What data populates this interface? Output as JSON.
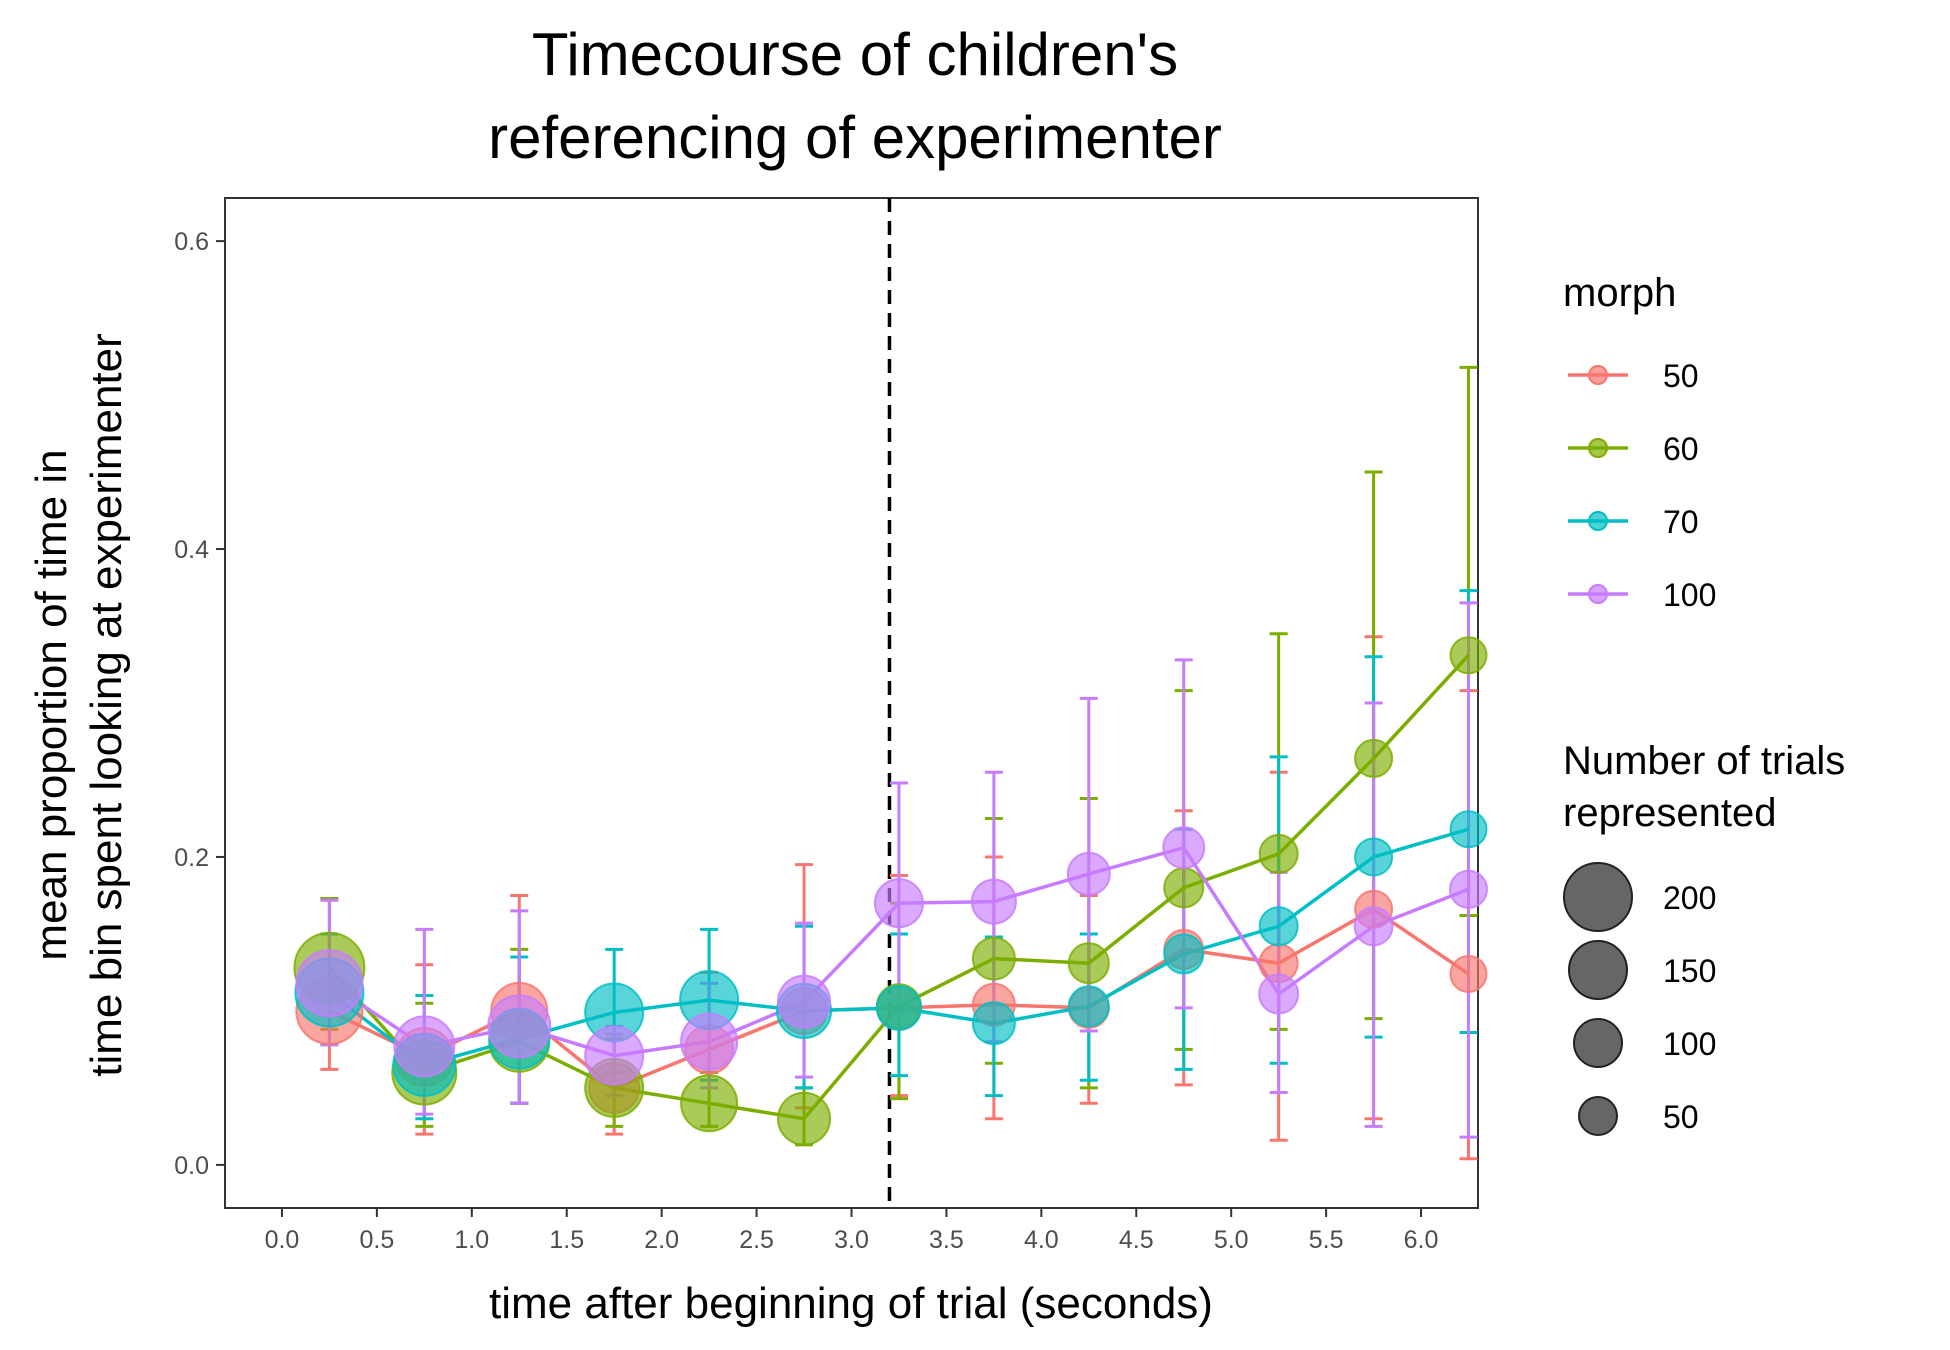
{
  "chart_data": {
    "type": "line",
    "title": [
      "Timecourse of children's",
      "referencing of experimenter"
    ],
    "xlabel": "time after beginning of trial (seconds)",
    "ylabel": [
      "mean proportion of time in",
      "time bin spent looking at experimenter"
    ],
    "xlim": [
      -0.3,
      6.3
    ],
    "ylim": [
      -0.028,
      0.628
    ],
    "x_ticks": [
      "0.0",
      "0.5",
      "1.0",
      "1.5",
      "2.0",
      "2.5",
      "3.0",
      "3.5",
      "4.0",
      "4.5",
      "5.0",
      "5.5",
      "6.0"
    ],
    "y_ticks": [
      "0.0",
      "0.2",
      "0.4",
      "0.6"
    ],
    "grid": false,
    "reference_line": {
      "x": 3.2,
      "style": "dashed"
    },
    "legend_position": "right",
    "color_legend": {
      "title": "morph",
      "entries": [
        "50",
        "60",
        "70",
        "100"
      ]
    },
    "size_legend": {
      "title": [
        "Number of trials",
        "represented"
      ],
      "entries": [
        "200",
        "150",
        "100",
        "50"
      ]
    },
    "colors": {
      "50": "#F8766D",
      "60": "#7CAE00",
      "70": "#00BFC4",
      "100": "#C77CFF",
      "reference_line": "#000000",
      "legend_size_points": "#404040"
    },
    "x": [
      0.25,
      0.75,
      1.25,
      1.75,
      2.25,
      2.75,
      3.25,
      3.75,
      4.25,
      4.75,
      5.25,
      5.75,
      6.25
    ],
    "series": [
      {
        "name": "50",
        "values": [
          0.1,
          0.07,
          0.1,
          0.05,
          0.075,
          0.1,
          0.102,
          0.104,
          0.102,
          0.14,
          0.131,
          0.166,
          0.124
        ],
        "lower": [
          0.062,
          0.02,
          0.04,
          0.02,
          0.025,
          0.037,
          0.045,
          0.03,
          0.04,
          0.052,
          0.016,
          0.03,
          0.004
        ],
        "upper": [
          0.172,
          0.13,
          0.175,
          0.085,
          0.125,
          0.195,
          0.188,
          0.2,
          0.175,
          0.23,
          0.255,
          0.343,
          0.308
        ],
        "n": [
          190,
          150,
          140,
          110,
          100,
          90,
          80,
          70,
          60,
          55,
          50,
          45,
          40
        ]
      },
      {
        "name": "60",
        "values": [
          0.128,
          0.06,
          0.08,
          0.05,
          0.04,
          0.03,
          0.103,
          0.134,
          0.131,
          0.18,
          0.202,
          0.264,
          0.331
        ],
        "lower": [
          0.088,
          0.025,
          0.04,
          0.025,
          0.025,
          0.013,
          0.043,
          0.066,
          0.05,
          0.075,
          0.088,
          0.095,
          0.162
        ],
        "upper": [
          0.173,
          0.105,
          0.14,
          0.082,
          0.06,
          0.05,
          0.17,
          0.225,
          0.238,
          0.308,
          0.345,
          0.45,
          0.518
        ],
        "n": [
          210,
          180,
          160,
          150,
          140,
          120,
          80,
          70,
          60,
          55,
          50,
          45,
          40
        ]
      },
      {
        "name": "70",
        "values": [
          0.112,
          0.065,
          0.082,
          0.099,
          0.107,
          0.1,
          0.102,
          0.092,
          0.103,
          0.137,
          0.155,
          0.2,
          0.218
        ],
        "lower": [
          0.078,
          0.03,
          0.04,
          0.06,
          0.055,
          0.05,
          0.058,
          0.045,
          0.055,
          0.062,
          0.066,
          0.083,
          0.086
        ],
        "upper": [
          0.15,
          0.11,
          0.135,
          0.14,
          0.153,
          0.155,
          0.15,
          0.148,
          0.15,
          0.218,
          0.265,
          0.33,
          0.373
        ],
        "n": [
          200,
          170,
          160,
          150,
          150,
          130,
          80,
          70,
          60,
          55,
          50,
          45,
          40
        ]
      },
      {
        "name": "100",
        "values": [
          0.118,
          0.077,
          0.09,
          0.071,
          0.08,
          0.106,
          0.17,
          0.171,
          0.189,
          0.206,
          0.111,
          0.155,
          0.179
        ],
        "lower": [
          0.078,
          0.033,
          0.04,
          0.045,
          0.05,
          0.057,
          0.1,
          0.08,
          0.087,
          0.102,
          0.047,
          0.025,
          0.018
        ],
        "upper": [
          0.172,
          0.153,
          0.165,
          0.09,
          0.118,
          0.157,
          0.248,
          0.255,
          0.303,
          0.328,
          0.19,
          0.3,
          0.365
        ],
        "n": [
          190,
          160,
          170,
          150,
          140,
          120,
          100,
          80,
          70,
          65,
          55,
          50,
          45
        ]
      }
    ]
  }
}
